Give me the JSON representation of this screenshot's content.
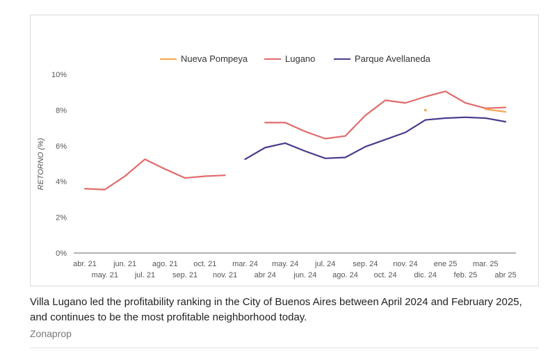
{
  "chart_data": {
    "type": "line",
    "title": "",
    "xlabel": "",
    "ylabel": "RETORNO (%)",
    "ylim": [
      0,
      10
    ],
    "y_ticks": [
      0,
      2,
      4,
      6,
      8,
      10
    ],
    "y_tick_labels": [
      "0%",
      "2%",
      "4%",
      "6%",
      "8%",
      "10%"
    ],
    "legend_position": "top",
    "categories": [
      "abr. 21",
      "may. 21",
      "jun. 21",
      "jul. 21",
      "ago. 21",
      "sep. 21",
      "oct. 21",
      "nov. 21",
      "mar. 24",
      "abr 24",
      "may. 24",
      "jun. 24",
      "jul. 24",
      "ago. 24",
      "sep. 24",
      "oct. 24",
      "nov. 24",
      "dic. 24",
      "ene 25",
      "feb. 25",
      "mar. 25",
      "abr 25"
    ],
    "series": [
      {
        "name": "Nueva Pompeya",
        "color": "#f5a54a",
        "values": [
          null,
          null,
          null,
          null,
          null,
          null,
          null,
          null,
          null,
          null,
          null,
          null,
          null,
          null,
          null,
          null,
          null,
          8.0,
          null,
          null,
          8.05,
          7.9
        ]
      },
      {
        "name": "Lugano",
        "color": "#e26a6a",
        "values": [
          3.6,
          3.55,
          4.3,
          5.25,
          4.7,
          4.2,
          4.3,
          4.35,
          null,
          7.3,
          7.3,
          6.8,
          6.4,
          6.55,
          7.7,
          8.55,
          8.4,
          8.75,
          9.05,
          8.4,
          8.1,
          8.15
        ]
      },
      {
        "name": "Parque Avellaneda",
        "color": "#4b3a8c",
        "values": [
          null,
          null,
          null,
          null,
          null,
          null,
          null,
          null,
          5.25,
          5.9,
          6.15,
          5.7,
          5.3,
          5.35,
          5.95,
          6.35,
          6.75,
          7.45,
          7.55,
          7.6,
          7.55,
          7.35
        ]
      }
    ]
  },
  "caption": {
    "text": "Villa Lugano led the profitability ranking in the City of Buenos Aires between April 2024 and February 2025, and continues to be the most profitable neighborhood today.",
    "credit": "Zonaprop"
  }
}
